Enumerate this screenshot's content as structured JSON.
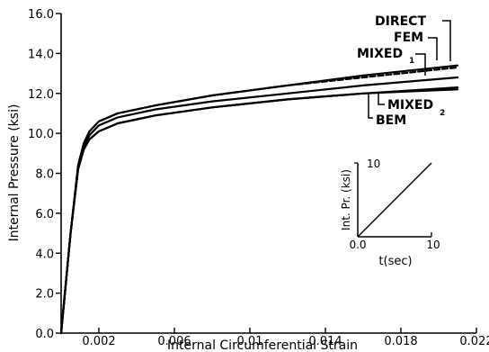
{
  "chart_data": {
    "type": "line",
    "xlabel": "Internal Circumferential Strain",
    "ylabel": "Internal Pressure (ksi)",
    "xlim": [
      0,
      0.022
    ],
    "ylim": [
      0,
      16
    ],
    "x_ticks": [
      {
        "value": 0.002,
        "label": "0.002"
      },
      {
        "value": 0.006,
        "label": "0.006"
      },
      {
        "value": 0.01,
        "label": "0.01"
      },
      {
        "value": 0.014,
        "label": "0.014"
      },
      {
        "value": 0.018,
        "label": "0.018"
      },
      {
        "value": 0.022,
        "label": "0.022"
      }
    ],
    "y_ticks": [
      {
        "value": 0,
        "label": "0.0"
      },
      {
        "value": 2,
        "label": "2.0"
      },
      {
        "value": 4,
        "label": "4.0"
      },
      {
        "value": 6,
        "label": "6.0"
      },
      {
        "value": 8,
        "label": "8.0"
      },
      {
        "value": 10,
        "label": "10.0"
      },
      {
        "value": 12,
        "label": "12.0"
      },
      {
        "value": 14,
        "label": "14.0"
      },
      {
        "value": 16,
        "label": "16.0"
      }
    ],
    "series": [
      {
        "name": "DIRECT",
        "style": "solid",
        "x": [
          0,
          0.0005,
          0.0009,
          0.0012,
          0.0015,
          0.002,
          0.003,
          0.005,
          0.008,
          0.012,
          0.016,
          0.021
        ],
        "y": [
          0,
          5.0,
          8.4,
          9.5,
          10.1,
          10.6,
          11.0,
          11.4,
          11.9,
          12.4,
          12.9,
          13.4
        ]
      },
      {
        "name": "FEM",
        "style": "dashed",
        "x": [
          0,
          0.0005,
          0.0009,
          0.0012,
          0.0015,
          0.002,
          0.003,
          0.005,
          0.008,
          0.012,
          0.016,
          0.021
        ],
        "y": [
          0,
          5.0,
          8.4,
          9.5,
          10.1,
          10.6,
          11.0,
          11.4,
          11.9,
          12.4,
          12.8,
          13.3
        ]
      },
      {
        "name": "MIXED1",
        "style": "solid",
        "x": [
          0,
          0.0005,
          0.0009,
          0.0012,
          0.0015,
          0.002,
          0.003,
          0.005,
          0.008,
          0.012,
          0.016,
          0.021
        ],
        "y": [
          0,
          5.0,
          8.3,
          9.3,
          9.9,
          10.4,
          10.8,
          11.2,
          11.6,
          12.0,
          12.4,
          12.8
        ]
      },
      {
        "name": "MIXED2",
        "style": "solid",
        "x": [
          0,
          0.0005,
          0.0009,
          0.0012,
          0.0015,
          0.002,
          0.003,
          0.005,
          0.008,
          0.012,
          0.016,
          0.021
        ],
        "y": [
          0,
          5.0,
          8.2,
          9.2,
          9.7,
          10.1,
          10.5,
          10.9,
          11.3,
          11.7,
          12.0,
          12.3
        ]
      },
      {
        "name": "BEM",
        "style": "solid",
        "x": [
          0,
          0.0005,
          0.0009,
          0.0012,
          0.0015,
          0.002,
          0.003,
          0.005,
          0.008,
          0.012,
          0.016,
          0.021
        ],
        "y": [
          0,
          5.0,
          8.2,
          9.2,
          9.7,
          10.1,
          10.5,
          10.9,
          11.3,
          11.7,
          12.0,
          12.2
        ]
      }
    ],
    "annotations": [
      {
        "text": "DIRECT",
        "points_to_x": 0.0209,
        "points_to_y": 13.4
      },
      {
        "text": "FEM",
        "points_to_x": 0.0205,
        "points_to_y": 13.3
      },
      {
        "text": "MIXED",
        "subscript": "1",
        "points_to_x": 0.0199,
        "points_to_y": 12.8
      },
      {
        "text": "MIXED",
        "subscript": "2",
        "points_to_x": 0.0176,
        "points_to_y": 11.9
      },
      {
        "text": "BEM",
        "points_to_x": 0.017,
        "points_to_y": 11.9
      }
    ],
    "inset": {
      "type": "line",
      "xlabel": "t(sec)",
      "ylabel": "Int. Pr. (ksi)",
      "xlim": [
        0,
        10
      ],
      "ylim": [
        0,
        10
      ],
      "x_tick_labels": [
        "0.0",
        "10"
      ],
      "y_tick_labels": [
        "0.0",
        "10"
      ],
      "x": [
        0,
        10
      ],
      "y": [
        0,
        10
      ]
    }
  }
}
